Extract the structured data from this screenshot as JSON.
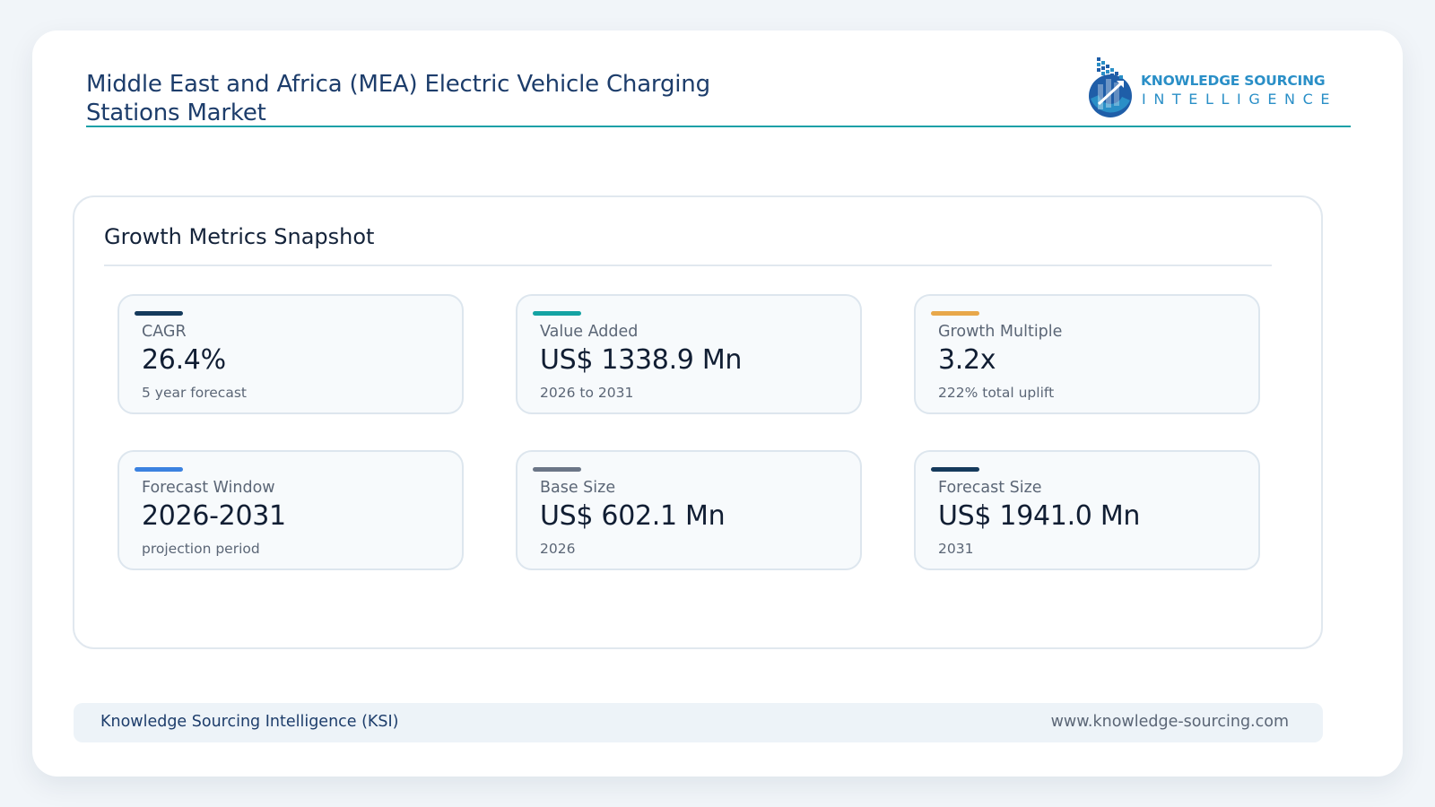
{
  "header": {
    "title": "Middle East and Africa (MEA) Electric Vehicle Charging Stations Market",
    "accent_color": "#1ca0a7"
  },
  "brand": {
    "line1": "KNOWLEDGE SOURCING",
    "line2": "INTELLIGENCE",
    "icon": "ksi-logo-icon",
    "color": "#2a8fc7"
  },
  "panel": {
    "title": "Growth Metrics Snapshot",
    "metrics": [
      {
        "label": "CAGR",
        "value": "26.4%",
        "sub": "5 year forecast",
        "accent": "#153a5c"
      },
      {
        "label": "Value Added",
        "value": "US$ 1338.9 Mn",
        "sub": "2026 to 2031",
        "accent": "#14a3a3"
      },
      {
        "label": "Growth Multiple",
        "value": "3.2x",
        "sub": "222% total uplift",
        "accent": "#e8a84a"
      },
      {
        "label": "Forecast Window",
        "value": "2026-2031",
        "sub": "projection period",
        "accent": "#3b82e0"
      },
      {
        "label": "Base Size",
        "value": "US$ 602.1 Mn",
        "sub": "2026",
        "accent": "#6b7687"
      },
      {
        "label": "Forecast Size",
        "value": "US$ 1941.0 Mn",
        "sub": "2031",
        "accent": "#153a5c"
      }
    ]
  },
  "footer": {
    "left": "Knowledge Sourcing Intelligence (KSI)",
    "right": "www.knowledge-sourcing.com"
  }
}
